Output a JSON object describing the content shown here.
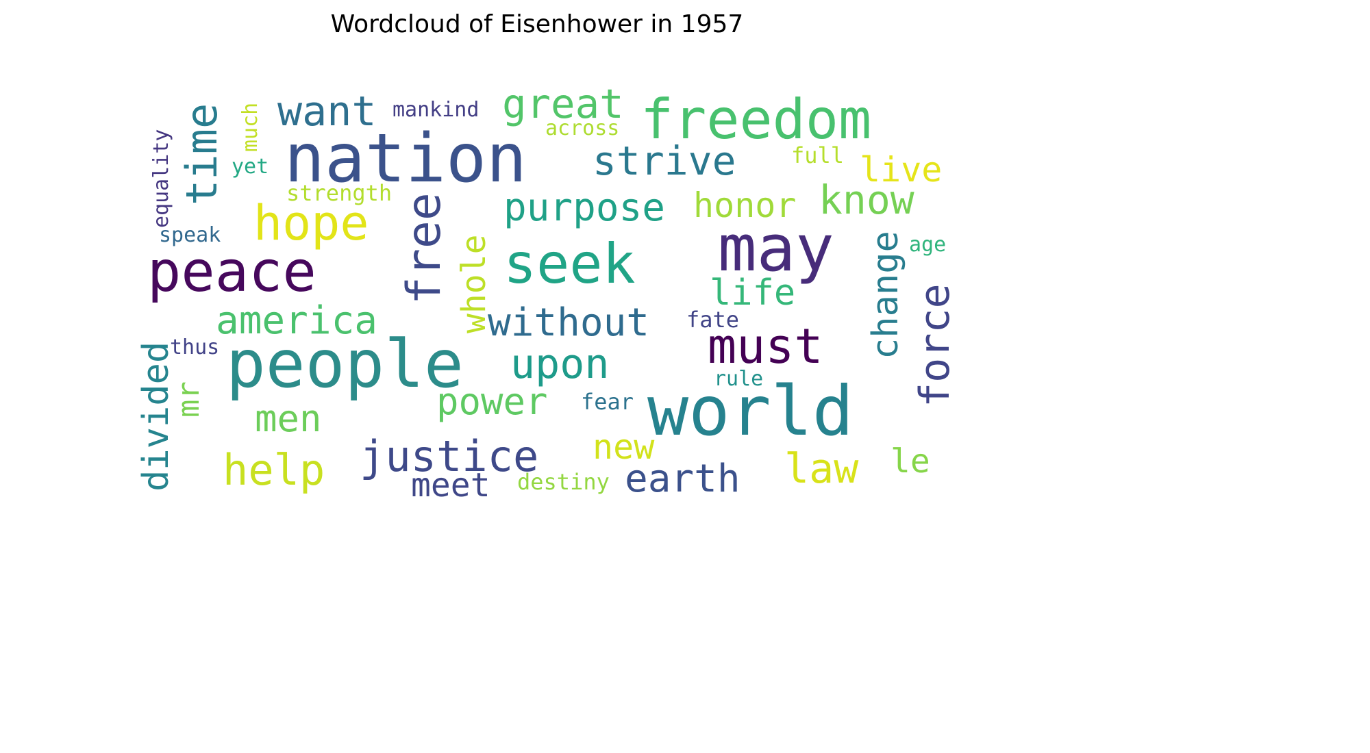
{
  "chart_data": {
    "type": "wordcloud",
    "title": "Wordcloud of Eisenhower in 1957",
    "axes_visible": false,
    "colormap": "viridis",
    "words": [
      {
        "text": "nation",
        "color": "#3b528b"
      },
      {
        "text": "freedom",
        "color": "#48c16e"
      },
      {
        "text": "people",
        "color": "#2c8c8a"
      },
      {
        "text": "world",
        "color": "#26828e"
      },
      {
        "text": "may",
        "color": "#472c7a"
      },
      {
        "text": "peace",
        "color": "#46085c"
      },
      {
        "text": "seek",
        "color": "#20a486"
      },
      {
        "text": "hope",
        "color": "#e2e418"
      },
      {
        "text": "time",
        "color": "#287c8e"
      },
      {
        "text": "want",
        "color": "#2e6f8e"
      },
      {
        "text": "great",
        "color": "#52c569"
      },
      {
        "text": "strive",
        "color": "#2a788e"
      },
      {
        "text": "purpose",
        "color": "#1fa187"
      },
      {
        "text": "know",
        "color": "#75d054"
      },
      {
        "text": "honor",
        "color": "#a0da39"
      },
      {
        "text": "live",
        "color": "#e5e419"
      },
      {
        "text": "free",
        "color": "#3e4a89"
      },
      {
        "text": "whole",
        "color": "#bddf26"
      },
      {
        "text": "america",
        "color": "#4ac16d"
      },
      {
        "text": "without",
        "color": "#2f6b8e"
      },
      {
        "text": "life",
        "color": "#35b779"
      },
      {
        "text": "must",
        "color": "#440154"
      },
      {
        "text": "change",
        "color": "#287d8e"
      },
      {
        "text": "force",
        "color": "#404588"
      },
      {
        "text": "upon",
        "color": "#1e9b8a"
      },
      {
        "text": "power",
        "color": "#5ec962"
      },
      {
        "text": "men",
        "color": "#6ccd5a"
      },
      {
        "text": "help",
        "color": "#c8e020"
      },
      {
        "text": "justice",
        "color": "#3e4989"
      },
      {
        "text": "earth",
        "color": "#3b518b"
      },
      {
        "text": "law",
        "color": "#d8e219"
      },
      {
        "text": "le",
        "color": "#86d549"
      },
      {
        "text": "new",
        "color": "#d2e21b"
      },
      {
        "text": "meet",
        "color": "#3f4788"
      },
      {
        "text": "destiny",
        "color": "#93d741"
      },
      {
        "text": "fear",
        "color": "#2c728e"
      },
      {
        "text": "rule",
        "color": "#21918c"
      },
      {
        "text": "fate",
        "color": "#414487"
      },
      {
        "text": "age",
        "color": "#2fb47c"
      },
      {
        "text": "full",
        "color": "#b5de2b"
      },
      {
        "text": "across",
        "color": "#addc30"
      },
      {
        "text": "mankind",
        "color": "#433e85"
      },
      {
        "text": "much",
        "color": "#c2df23"
      },
      {
        "text": "yet",
        "color": "#22a884"
      },
      {
        "text": "strength",
        "color": "#b2dd2d"
      },
      {
        "text": "speak",
        "color": "#31688e"
      },
      {
        "text": "equality",
        "color": "#453781"
      },
      {
        "text": "thus",
        "color": "#414287"
      },
      {
        "text": "divided",
        "color": "#25848e"
      },
      {
        "text": "mr",
        "color": "#7ad151"
      }
    ]
  }
}
